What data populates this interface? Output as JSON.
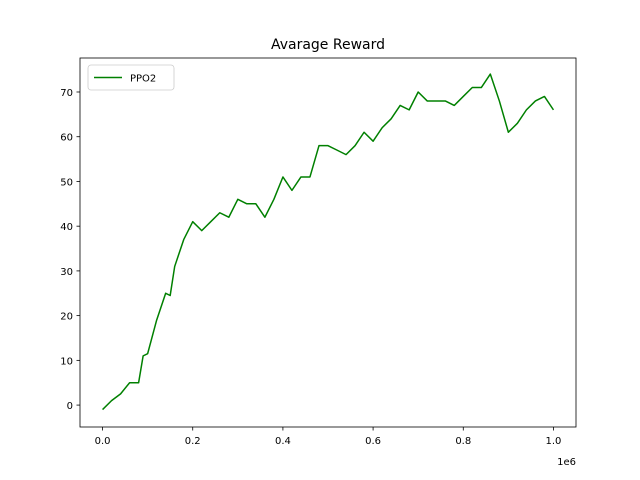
{
  "chart_data": {
    "type": "line",
    "title": "Avarage Reward",
    "x": [
      0,
      0.02,
      0.04,
      0.06,
      0.08,
      0.09,
      0.1,
      0.12,
      0.14,
      0.15,
      0.16,
      0.18,
      0.2,
      0.22,
      0.24,
      0.26,
      0.28,
      0.3,
      0.32,
      0.34,
      0.36,
      0.38,
      0.4,
      0.42,
      0.44,
      0.46,
      0.48,
      0.5,
      0.52,
      0.54,
      0.56,
      0.58,
      0.6,
      0.62,
      0.64,
      0.66,
      0.68,
      0.7,
      0.72,
      0.74,
      0.76,
      0.78,
      0.8,
      0.82,
      0.84,
      0.86,
      0.88,
      0.9,
      0.92,
      0.94,
      0.96,
      0.98,
      1.0
    ],
    "series": [
      {
        "name": "PPO2",
        "color": "#008000",
        "values": [
          -1,
          1,
          2.5,
          5,
          5,
          11,
          11.5,
          19,
          25,
          24.5,
          31,
          37,
          41,
          39,
          41,
          43,
          42,
          46,
          45,
          45,
          42,
          46,
          51,
          48,
          51,
          51,
          58,
          58,
          57,
          56,
          58,
          61,
          59,
          62,
          64,
          67,
          66,
          70,
          68,
          68,
          68,
          67,
          69,
          71,
          71,
          74,
          68,
          61,
          63,
          66,
          68,
          69,
          66
        ]
      }
    ],
    "xlim": [
      -0.05,
      1.05
    ],
    "xticks": [
      {
        "value": 0,
        "label": "0.0"
      },
      0.2,
      0.4,
      0.6,
      0.8,
      {
        "value": 1,
        "label": "1.0"
      }
    ],
    "x_offset_label": "1e6",
    "ylim": [
      -4.9,
      77.6
    ],
    "yticks": [
      0,
      10,
      20,
      30,
      40,
      50,
      60,
      70
    ],
    "legend": "upper left"
  }
}
